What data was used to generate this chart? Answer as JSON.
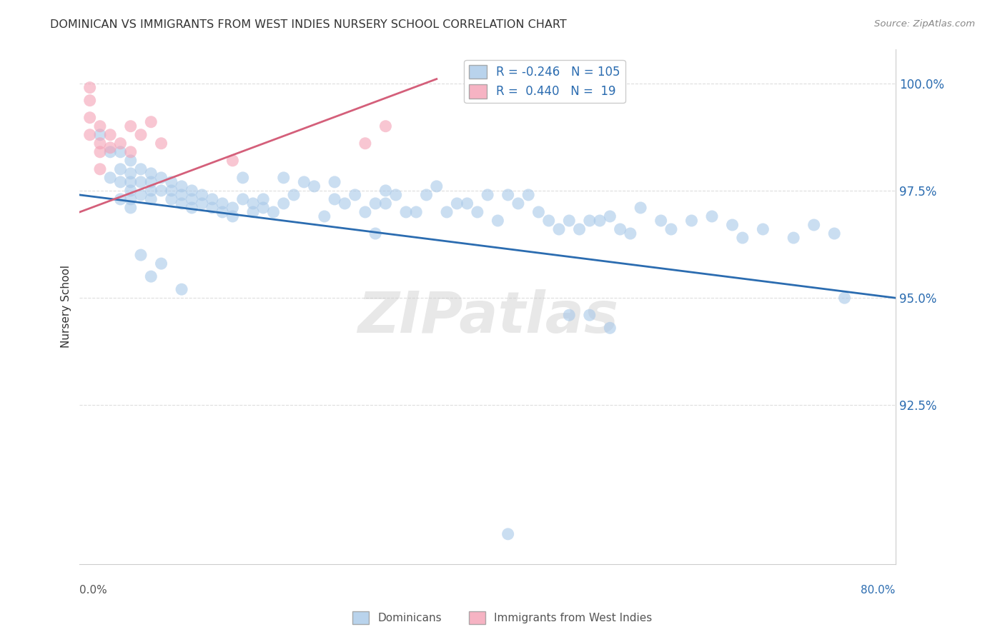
{
  "title": "DOMINICAN VS IMMIGRANTS FROM WEST INDIES NURSERY SCHOOL CORRELATION CHART",
  "source": "Source: ZipAtlas.com",
  "ylabel": "Nursery School",
  "xlim": [
    0.0,
    0.8
  ],
  "ylim": [
    0.888,
    1.008
  ],
  "ytick_vals": [
    0.925,
    0.95,
    0.975,
    1.0
  ],
  "ytick_labels": [
    "92.5%",
    "95.0%",
    "97.5%",
    "100.0%"
  ],
  "blue_color": "#a8c8e8",
  "pink_color": "#f4a0b5",
  "blue_line_color": "#2b6cb0",
  "pink_line_color": "#d45f7a",
  "blue_R": -0.246,
  "blue_N": 105,
  "pink_R": 0.44,
  "pink_N": 19,
  "legend_label_blue": "Dominicans",
  "legend_label_pink": "Immigrants from West Indies",
  "watermark": "ZIPatlas",
  "blue_line_x0": 0.0,
  "blue_line_y0": 0.974,
  "blue_line_x1": 0.8,
  "blue_line_y1": 0.95,
  "pink_line_x0": 0.0,
  "pink_line_y0": 0.97,
  "pink_line_x1": 0.35,
  "pink_line_y1": 1.001,
  "blue_x": [
    0.02,
    0.03,
    0.03,
    0.04,
    0.04,
    0.04,
    0.04,
    0.05,
    0.05,
    0.05,
    0.05,
    0.05,
    0.05,
    0.06,
    0.06,
    0.06,
    0.07,
    0.07,
    0.07,
    0.07,
    0.08,
    0.08,
    0.09,
    0.09,
    0.09,
    0.1,
    0.1,
    0.1,
    0.11,
    0.11,
    0.11,
    0.12,
    0.12,
    0.13,
    0.13,
    0.14,
    0.14,
    0.15,
    0.15,
    0.16,
    0.16,
    0.17,
    0.17,
    0.18,
    0.18,
    0.19,
    0.2,
    0.2,
    0.21,
    0.22,
    0.23,
    0.24,
    0.25,
    0.25,
    0.26,
    0.27,
    0.28,
    0.29,
    0.3,
    0.3,
    0.31,
    0.32,
    0.33,
    0.34,
    0.35,
    0.36,
    0.37,
    0.38,
    0.39,
    0.4,
    0.41,
    0.42,
    0.43,
    0.44,
    0.45,
    0.46,
    0.47,
    0.48,
    0.49,
    0.5,
    0.51,
    0.52,
    0.53,
    0.54,
    0.55,
    0.57,
    0.58,
    0.6,
    0.62,
    0.64,
    0.65,
    0.67,
    0.7,
    0.72,
    0.74,
    0.75,
    0.5,
    0.52,
    0.48,
    0.29,
    0.06,
    0.07,
    0.08,
    0.1,
    0.42
  ],
  "blue_y": [
    0.988,
    0.984,
    0.978,
    0.984,
    0.98,
    0.977,
    0.973,
    0.982,
    0.979,
    0.977,
    0.975,
    0.973,
    0.971,
    0.98,
    0.977,
    0.974,
    0.979,
    0.977,
    0.975,
    0.973,
    0.978,
    0.975,
    0.977,
    0.975,
    0.973,
    0.976,
    0.974,
    0.972,
    0.975,
    0.973,
    0.971,
    0.974,
    0.972,
    0.973,
    0.971,
    0.972,
    0.97,
    0.971,
    0.969,
    0.978,
    0.973,
    0.972,
    0.97,
    0.973,
    0.971,
    0.97,
    0.978,
    0.972,
    0.974,
    0.977,
    0.976,
    0.969,
    0.977,
    0.973,
    0.972,
    0.974,
    0.97,
    0.972,
    0.975,
    0.972,
    0.974,
    0.97,
    0.97,
    0.974,
    0.976,
    0.97,
    0.972,
    0.972,
    0.97,
    0.974,
    0.968,
    0.974,
    0.972,
    0.974,
    0.97,
    0.968,
    0.966,
    0.968,
    0.966,
    0.968,
    0.968,
    0.969,
    0.966,
    0.965,
    0.971,
    0.968,
    0.966,
    0.968,
    0.969,
    0.967,
    0.964,
    0.966,
    0.964,
    0.967,
    0.965,
    0.95,
    0.946,
    0.943,
    0.946,
    0.965,
    0.96,
    0.955,
    0.958,
    0.952,
    0.895
  ],
  "pink_x": [
    0.01,
    0.01,
    0.01,
    0.01,
    0.02,
    0.02,
    0.02,
    0.02,
    0.03,
    0.03,
    0.04,
    0.05,
    0.05,
    0.06,
    0.07,
    0.08,
    0.15,
    0.28,
    0.3
  ],
  "pink_y": [
    0.999,
    0.996,
    0.992,
    0.988,
    0.99,
    0.986,
    0.984,
    0.98,
    0.988,
    0.985,
    0.986,
    0.99,
    0.984,
    0.988,
    0.991,
    0.986,
    0.982,
    0.986,
    0.99
  ]
}
